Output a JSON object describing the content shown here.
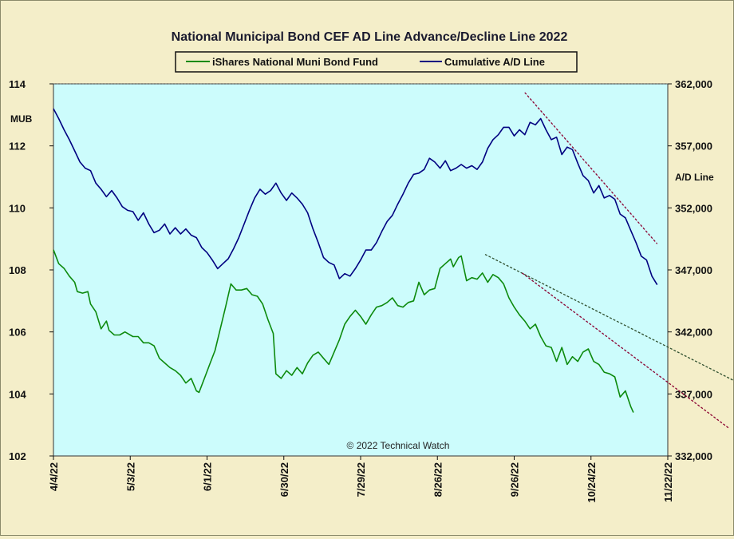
{
  "chart_data": {
    "type": "line",
    "title": "National Municipal Bond CEF AD Line Advance/Decline Line 2022",
    "left_axis_label": "MUB",
    "right_axis_label": "A/D Line",
    "copyright": "© 2022 Technical Watch",
    "x_tick_labels": [
      "4/4/22",
      "5/3/22",
      "6/1/22",
      "6/30/22",
      "7/29/22",
      "8/26/22",
      "9/26/22",
      "10/24/22",
      "11/22/22"
    ],
    "left_ylim": [
      102,
      114
    ],
    "left_ticks": [
      "102",
      "104",
      "106",
      "108",
      "110",
      "112",
      "114"
    ],
    "right_ylim": [
      332000,
      362000
    ],
    "right_ticks": [
      "332,000",
      "337,000",
      "342,000",
      "347,000",
      "352,000",
      "357,000",
      "362,000"
    ],
    "x_range_days": [
      0,
      232
    ],
    "grid": "dotted line at top of plot",
    "legend_position": "top-center",
    "colors": {
      "plot_bg": "#ccfcfc",
      "page_bg": "#f4eec9",
      "mub": "#0d8a0d",
      "ad": "#000080",
      "trend_red": "#8b0030",
      "trend_dark": "#2f4f2f"
    },
    "series": [
      {
        "name": "iShares National Muni Bond Fund",
        "axis": "left",
        "color": "#0d8a0d",
        "points": [
          [
            0,
            108.65
          ],
          [
            2,
            108.2
          ],
          [
            4,
            108.05
          ],
          [
            6,
            107.8
          ],
          [
            8,
            107.6
          ],
          [
            9,
            107.3
          ],
          [
            11,
            107.25
          ],
          [
            13,
            107.3
          ],
          [
            14,
            106.9
          ],
          [
            16,
            106.65
          ],
          [
            18,
            106.1
          ],
          [
            20,
            106.35
          ],
          [
            21,
            106.05
          ],
          [
            23,
            105.9
          ],
          [
            25,
            105.9
          ],
          [
            27,
            106.0
          ],
          [
            28,
            105.95
          ],
          [
            30,
            105.85
          ],
          [
            32,
            105.85
          ],
          [
            34,
            105.65
          ],
          [
            36,
            105.65
          ],
          [
            38,
            105.55
          ],
          [
            40,
            105.15
          ],
          [
            42,
            105.0
          ],
          [
            44,
            104.85
          ],
          [
            46,
            104.75
          ],
          [
            48,
            104.6
          ],
          [
            50,
            104.35
          ],
          [
            52,
            104.5
          ],
          [
            54,
            104.1
          ],
          [
            55,
            104.05
          ],
          [
            57,
            104.5
          ],
          [
            59,
            104.95
          ],
          [
            61,
            105.4
          ],
          [
            63,
            106.1
          ],
          [
            65,
            106.8
          ],
          [
            67,
            107.55
          ],
          [
            69,
            107.35
          ],
          [
            71,
            107.35
          ],
          [
            73,
            107.4
          ],
          [
            75,
            107.2
          ],
          [
            77,
            107.15
          ],
          [
            79,
            106.9
          ],
          [
            81,
            106.4
          ],
          [
            83,
            105.95
          ],
          [
            84,
            104.65
          ],
          [
            86,
            104.5
          ],
          [
            88,
            104.75
          ],
          [
            90,
            104.6
          ],
          [
            92,
            104.85
          ],
          [
            94,
            104.65
          ],
          [
            96,
            105.0
          ],
          [
            98,
            105.25
          ],
          [
            100,
            105.35
          ],
          [
            102,
            105.15
          ],
          [
            104,
            104.95
          ],
          [
            106,
            105.35
          ],
          [
            108,
            105.75
          ],
          [
            110,
            106.25
          ],
          [
            112,
            106.5
          ],
          [
            114,
            106.7
          ],
          [
            116,
            106.5
          ],
          [
            118,
            106.25
          ],
          [
            120,
            106.55
          ],
          [
            122,
            106.8
          ],
          [
            124,
            106.85
          ],
          [
            126,
            106.95
          ],
          [
            128,
            107.1
          ],
          [
            130,
            106.85
          ],
          [
            132,
            106.8
          ],
          [
            134,
            106.95
          ],
          [
            136,
            107.0
          ],
          [
            138,
            107.6
          ],
          [
            140,
            107.2
          ],
          [
            142,
            107.35
          ],
          [
            144,
            107.4
          ],
          [
            146,
            108.05
          ],
          [
            148,
            108.2
          ],
          [
            150,
            108.35
          ],
          [
            151,
            108.1
          ],
          [
            153,
            108.4
          ],
          [
            154,
            108.45
          ],
          [
            156,
            107.65
          ],
          [
            158,
            107.75
          ],
          [
            160,
            107.7
          ],
          [
            162,
            107.9
          ],
          [
            164,
            107.6
          ],
          [
            166,
            107.85
          ],
          [
            168,
            107.75
          ],
          [
            170,
            107.55
          ],
          [
            172,
            107.1
          ],
          [
            174,
            106.8
          ],
          [
            176,
            106.55
          ],
          [
            178,
            106.35
          ],
          [
            180,
            106.1
          ],
          [
            182,
            106.25
          ],
          [
            184,
            105.85
          ],
          [
            186,
            105.55
          ],
          [
            188,
            105.5
          ],
          [
            190,
            105.05
          ],
          [
            192,
            105.5
          ],
          [
            194,
            104.95
          ],
          [
            196,
            105.2
          ],
          [
            198,
            105.05
          ],
          [
            200,
            105.35
          ],
          [
            202,
            105.45
          ],
          [
            204,
            105.05
          ],
          [
            206,
            104.95
          ],
          [
            208,
            104.7
          ],
          [
            210,
            104.65
          ],
          [
            212,
            104.55
          ],
          [
            214,
            103.9
          ],
          [
            216,
            104.1
          ],
          [
            218,
            103.6
          ],
          [
            219,
            103.4
          ]
        ]
      },
      {
        "name": "Cumulative A/D Line",
        "axis": "right",
        "color": "#000080",
        "points": [
          [
            0,
            360000
          ],
          [
            2,
            359200
          ],
          [
            4,
            358300
          ],
          [
            6,
            357500
          ],
          [
            8,
            356600
          ],
          [
            10,
            355700
          ],
          [
            12,
            355200
          ],
          [
            14,
            355000
          ],
          [
            16,
            354000
          ],
          [
            18,
            353500
          ],
          [
            20,
            352900
          ],
          [
            22,
            353400
          ],
          [
            24,
            352800
          ],
          [
            26,
            352100
          ],
          [
            28,
            351800
          ],
          [
            30,
            351700
          ],
          [
            32,
            351000
          ],
          [
            34,
            351600
          ],
          [
            36,
            350700
          ],
          [
            38,
            350000
          ],
          [
            40,
            350200
          ],
          [
            42,
            350700
          ],
          [
            44,
            349900
          ],
          [
            46,
            350400
          ],
          [
            48,
            349900
          ],
          [
            50,
            350300
          ],
          [
            52,
            349800
          ],
          [
            54,
            349600
          ],
          [
            56,
            348800
          ],
          [
            58,
            348400
          ],
          [
            60,
            347800
          ],
          [
            62,
            347100
          ],
          [
            64,
            347500
          ],
          [
            66,
            347900
          ],
          [
            68,
            348700
          ],
          [
            70,
            349600
          ],
          [
            72,
            350700
          ],
          [
            74,
            351800
          ],
          [
            76,
            352800
          ],
          [
            78,
            353500
          ],
          [
            80,
            353100
          ],
          [
            82,
            353400
          ],
          [
            84,
            354000
          ],
          [
            86,
            353200
          ],
          [
            88,
            352600
          ],
          [
            90,
            353200
          ],
          [
            92,
            352800
          ],
          [
            94,
            352300
          ],
          [
            96,
            351600
          ],
          [
            98,
            350300
          ],
          [
            100,
            349200
          ],
          [
            102,
            348000
          ],
          [
            104,
            347600
          ],
          [
            106,
            347400
          ],
          [
            108,
            346300
          ],
          [
            110,
            346700
          ],
          [
            112,
            346500
          ],
          [
            114,
            347100
          ],
          [
            116,
            347800
          ],
          [
            118,
            348600
          ],
          [
            120,
            348600
          ],
          [
            122,
            349200
          ],
          [
            124,
            350100
          ],
          [
            126,
            350900
          ],
          [
            128,
            351400
          ],
          [
            130,
            352300
          ],
          [
            132,
            353100
          ],
          [
            134,
            354000
          ],
          [
            136,
            354700
          ],
          [
            138,
            354800
          ],
          [
            140,
            355100
          ],
          [
            142,
            356000
          ],
          [
            144,
            355700
          ],
          [
            146,
            355200
          ],
          [
            148,
            355800
          ],
          [
            150,
            355000
          ],
          [
            152,
            355200
          ],
          [
            154,
            355500
          ],
          [
            156,
            355200
          ],
          [
            158,
            355400
          ],
          [
            160,
            355100
          ],
          [
            162,
            355700
          ],
          [
            164,
            356800
          ],
          [
            166,
            357500
          ],
          [
            168,
            357900
          ],
          [
            170,
            358500
          ],
          [
            172,
            358500
          ],
          [
            174,
            357800
          ],
          [
            176,
            358300
          ],
          [
            178,
            357900
          ],
          [
            180,
            358900
          ],
          [
            182,
            358700
          ],
          [
            184,
            359200
          ],
          [
            186,
            358300
          ],
          [
            188,
            357500
          ],
          [
            190,
            357700
          ],
          [
            192,
            356300
          ],
          [
            194,
            356900
          ],
          [
            196,
            356700
          ],
          [
            198,
            355600
          ],
          [
            200,
            354600
          ],
          [
            202,
            354200
          ],
          [
            204,
            353200
          ],
          [
            206,
            353800
          ],
          [
            208,
            352800
          ],
          [
            210,
            353000
          ],
          [
            212,
            352700
          ],
          [
            214,
            351500
          ],
          [
            216,
            351200
          ],
          [
            218,
            350200
          ],
          [
            220,
            349200
          ],
          [
            222,
            348100
          ],
          [
            224,
            347800
          ],
          [
            226,
            346500
          ],
          [
            228,
            345800
          ]
        ]
      }
    ],
    "trendlines": [
      {
        "axis": "right",
        "color": "#8b0030",
        "from": [
          178,
          361300
        ],
        "to": [
          228,
          349100
        ]
      },
      {
        "axis": "left",
        "color": "#2f4f2f",
        "from": [
          163,
          108.5
        ],
        "to": [
          275,
          103.65
        ]
      },
      {
        "axis": "left",
        "color": "#8b0030",
        "from": [
          177,
          107.9
        ],
        "to": [
          255,
          102.9
        ]
      }
    ]
  }
}
